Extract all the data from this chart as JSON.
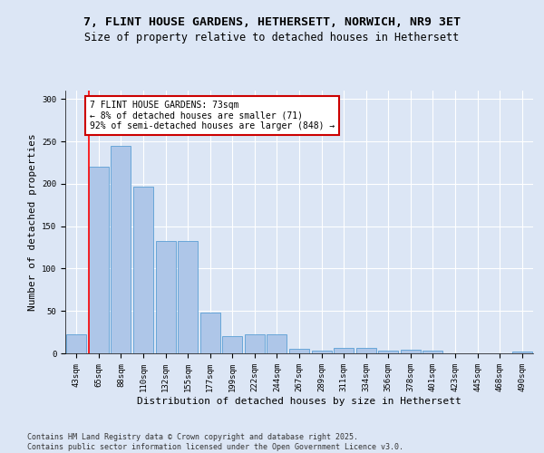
{
  "title_line1": "7, FLINT HOUSE GARDENS, HETHERSETT, NORWICH, NR9 3ET",
  "title_line2": "Size of property relative to detached houses in Hethersett",
  "categories": [
    "43sqm",
    "65sqm",
    "88sqm",
    "110sqm",
    "132sqm",
    "155sqm",
    "177sqm",
    "199sqm",
    "222sqm",
    "244sqm",
    "267sqm",
    "289sqm",
    "311sqm",
    "334sqm",
    "356sqm",
    "378sqm",
    "401sqm",
    "423sqm",
    "445sqm",
    "468sqm",
    "490sqm"
  ],
  "values": [
    22,
    220,
    245,
    197,
    133,
    133,
    48,
    20,
    22,
    22,
    5,
    3,
    6,
    6,
    3,
    4,
    3,
    0,
    0,
    0,
    2
  ],
  "bar_color": "#aec6e8",
  "bar_edge_color": "#5a9fd4",
  "background_color": "#dce6f5",
  "fig_background_color": "#dce6f5",
  "ylabel": "Number of detached properties",
  "xlabel": "Distribution of detached houses by size in Hethersett",
  "ylim": [
    0,
    310
  ],
  "yticks": [
    0,
    50,
    100,
    150,
    200,
    250,
    300
  ],
  "annotation_title": "7 FLINT HOUSE GARDENS: 73sqm",
  "annotation_line2": "← 8% of detached houses are smaller (71)",
  "annotation_line3": "92% of semi-detached houses are larger (848) →",
  "annotation_box_color": "#ffffff",
  "annotation_box_edge_color": "#cc0000",
  "footer_line1": "Contains HM Land Registry data © Crown copyright and database right 2025.",
  "footer_line2": "Contains public sector information licensed under the Open Government Licence v3.0.",
  "grid_color": "#ffffff",
  "title_fontsize": 9.5,
  "subtitle_fontsize": 8.5,
  "axis_label_fontsize": 8,
  "tick_fontsize": 6.5,
  "annotation_fontsize": 7,
  "footer_fontsize": 6
}
